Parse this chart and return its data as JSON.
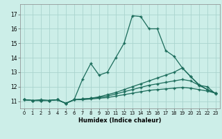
{
  "xlabel": "Humidex (Indice chaleur)",
  "bg_color": "#cceee8",
  "grid_color": "#aad4ce",
  "line_color": "#1a6b5a",
  "xlim": [
    -0.5,
    23.5
  ],
  "ylim": [
    10.5,
    17.7
  ],
  "yticks": [
    11,
    12,
    13,
    14,
    15,
    16,
    17
  ],
  "xticks": [
    0,
    1,
    2,
    3,
    4,
    5,
    6,
    7,
    8,
    9,
    10,
    11,
    12,
    13,
    14,
    15,
    16,
    17,
    18,
    19,
    20,
    21,
    22,
    23
  ],
  "line1_x": [
    0,
    1,
    2,
    3,
    4,
    5,
    6,
    7,
    8,
    9,
    10,
    11,
    12,
    13,
    14,
    15,
    16,
    17,
    18,
    19,
    20,
    21,
    22,
    23
  ],
  "line1_y": [
    11.1,
    11.05,
    11.1,
    11.05,
    11.1,
    10.85,
    11.1,
    12.5,
    13.6,
    12.8,
    13.0,
    14.0,
    15.0,
    16.9,
    16.85,
    16.0,
    16.0,
    14.5,
    14.1,
    13.3,
    12.7,
    12.1,
    12.0,
    11.5
  ],
  "line2_x": [
    0,
    1,
    2,
    3,
    4,
    5,
    6,
    7,
    8,
    9,
    10,
    11,
    12,
    13,
    14,
    15,
    16,
    17,
    18,
    19,
    20,
    21,
    22,
    23
  ],
  "line2_y": [
    11.1,
    11.05,
    11.05,
    11.05,
    11.1,
    10.85,
    11.1,
    11.15,
    11.2,
    11.3,
    11.45,
    11.6,
    11.8,
    12.0,
    12.2,
    12.4,
    12.6,
    12.8,
    13.0,
    13.3,
    12.7,
    12.15,
    11.8,
    11.55
  ],
  "line3_x": [
    0,
    1,
    2,
    3,
    4,
    5,
    6,
    7,
    8,
    9,
    10,
    11,
    12,
    13,
    14,
    15,
    16,
    17,
    18,
    19,
    20,
    21,
    22,
    23
  ],
  "line3_y": [
    11.1,
    11.05,
    11.05,
    11.05,
    11.1,
    10.85,
    11.1,
    11.15,
    11.2,
    11.25,
    11.35,
    11.5,
    11.65,
    11.8,
    11.95,
    12.1,
    12.2,
    12.3,
    12.4,
    12.5,
    12.4,
    12.1,
    11.8,
    11.55
  ],
  "line4_x": [
    0,
    1,
    2,
    3,
    4,
    5,
    6,
    7,
    8,
    9,
    10,
    11,
    12,
    13,
    14,
    15,
    16,
    17,
    18,
    19,
    20,
    21,
    22,
    23
  ],
  "line4_y": [
    11.1,
    11.05,
    11.05,
    11.05,
    11.1,
    10.85,
    11.1,
    11.1,
    11.15,
    11.2,
    11.25,
    11.35,
    11.45,
    11.55,
    11.65,
    11.75,
    11.8,
    11.85,
    11.9,
    11.95,
    11.9,
    11.8,
    11.7,
    11.55
  ]
}
